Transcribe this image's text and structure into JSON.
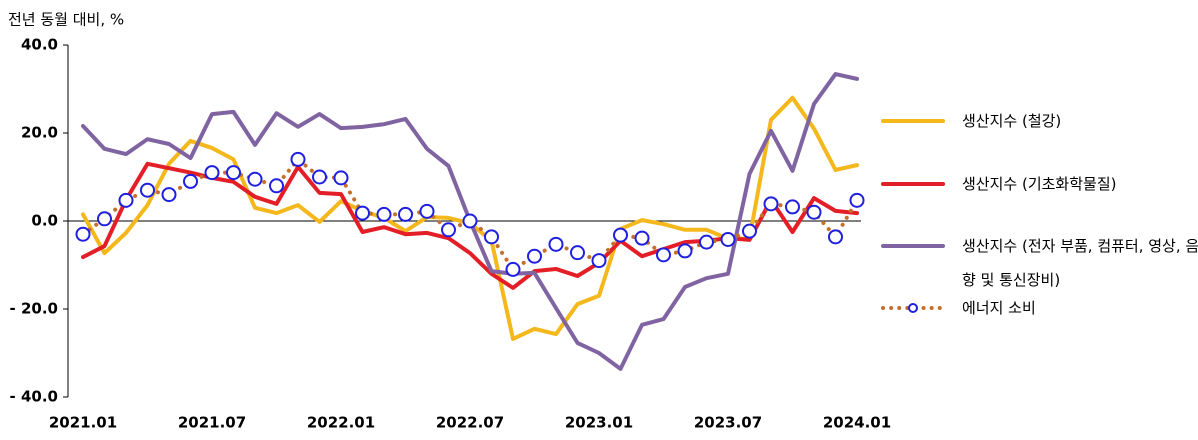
{
  "chart_data": {
    "type": "line",
    "y_label": "전년 동월 대비, %",
    "categories": [
      "2021.01",
      null,
      null,
      null,
      null,
      null,
      "2021.07",
      null,
      null,
      null,
      null,
      null,
      "2022.01",
      null,
      null,
      null,
      null,
      null,
      "2022.07",
      null,
      null,
      null,
      null,
      null,
      "2023.01",
      null,
      null,
      null,
      null,
      null,
      "2023.07",
      null,
      null,
      null,
      null,
      null,
      "2024.01"
    ],
    "ylim": [
      -40,
      40
    ],
    "yticks": [
      {
        "value": 40,
        "label": "40.0"
      },
      {
        "value": 20,
        "label": "20.0"
      },
      {
        "value": 0,
        "label": "0.0"
      },
      {
        "value": -20,
        "label": "- 20.0"
      },
      {
        "value": -40,
        "label": "- 40.0"
      }
    ],
    "series": [
      {
        "name": "생산지수 (철강)",
        "color": "#f4b81c",
        "line_style": "solid",
        "values": [
          1.5,
          -7.3,
          -2.7,
          3.6,
          13,
          18.2,
          16.6,
          14,
          3,
          1.8,
          3.6,
          -0.2,
          4.5,
          2.3,
          0.7,
          -2.3,
          0.9,
          0.7,
          -0.5,
          -4.5,
          -26.8,
          -24.5,
          -25.7,
          -18.9,
          -17,
          -1.8,
          0.2,
          -0.7,
          -2,
          -2,
          -4,
          -4,
          23,
          28,
          21,
          11.6,
          12.7
        ]
      },
      {
        "name": "생산지수 (기초화학물질)",
        "color": "#e41e26",
        "line_style": "solid",
        "values": [
          -8.2,
          -5.7,
          4.8,
          13,
          12,
          11,
          9.8,
          8.9,
          5.5,
          3.9,
          12.3,
          6.4,
          6.1,
          -2.5,
          -1.4,
          -3,
          -2.7,
          -3.9,
          -7.3,
          -12,
          -15.2,
          -11.4,
          -10.9,
          -12.5,
          -9.5,
          -4.5,
          -8,
          -6.4,
          -4.8,
          -4.5,
          -3.9,
          -4.3,
          4.8,
          -2.5,
          5.2,
          2.3,
          1.8
        ]
      },
      {
        "name": "생산지수 (전자 부품, 컴퓨터, 영상, 음향 및 통신장비)",
        "color": "#8064a2",
        "line_style": "solid",
        "values": [
          21.6,
          16.4,
          15.2,
          18.6,
          17.5,
          14.3,
          24.3,
          24.8,
          17.3,
          24.5,
          21.4,
          24.3,
          21.1,
          21.4,
          22,
          23.2,
          16.4,
          12.5,
          0,
          -11.4,
          -12,
          -11.8,
          -19.8,
          -27.7,
          -30,
          -33.6,
          -23.6,
          -22.3,
          -15,
          -13,
          -12,
          10.7,
          20.5,
          11.4,
          26.6,
          33.4,
          32.3
        ]
      },
      {
        "name": "에너지 소비",
        "color": "#c5702d",
        "line_style": "dotted",
        "marker": "circle",
        "marker_color": "#1f1fe0",
        "values": [
          -3,
          0.5,
          4.7,
          7,
          6,
          9,
          11,
          11,
          9.5,
          8,
          14,
          10,
          9.8,
          1.8,
          1.5,
          1.5,
          2.2,
          -2,
          0,
          -3.6,
          -11,
          -8,
          -5.3,
          -7.2,
          -9,
          -3.2,
          -3.9,
          -7.7,
          -6.8,
          -4.8,
          -4.2,
          -2.3,
          3.9,
          3.2,
          2,
          -3.6,
          4.7
        ]
      }
    ]
  }
}
